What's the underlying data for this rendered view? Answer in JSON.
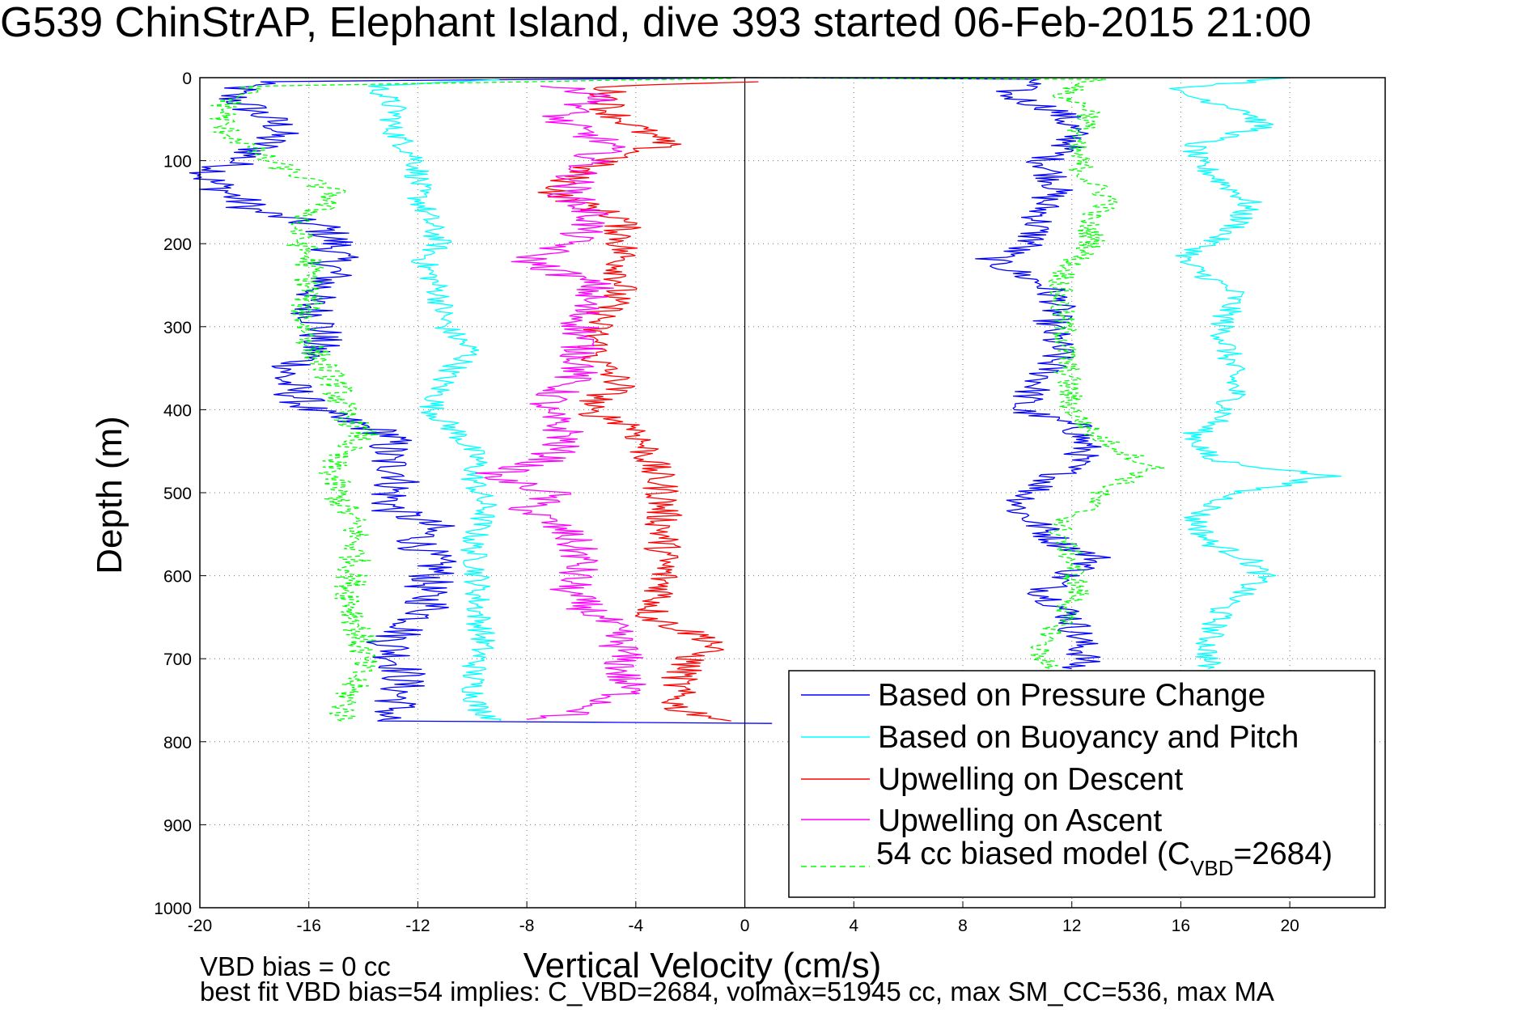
{
  "chart_data": {
    "type": "line",
    "title": "G539 ChinStrAP, Elephant Island, dive 393 started 06-Feb-2015 21:00",
    "xlabel": "Vertical Velocity (cm/s)",
    "ylabel": "Depth (m)",
    "xlim": [
      -20,
      23.5
    ],
    "ylim": [
      1000,
      0
    ],
    "xticks": [
      "-20",
      "-16",
      "-12",
      "-8",
      "-4",
      "0",
      "4",
      "8",
      "12",
      "16",
      "20"
    ],
    "yticks": [
      "0",
      "100",
      "200",
      "300",
      "400",
      "500",
      "600",
      "700",
      "800",
      "900",
      "1000"
    ],
    "grid": true,
    "legend_position": "bottom-right",
    "legend": {
      "entries": [
        {
          "label": "Based on Pressure Change",
          "color": "#0000ff",
          "style": "solid"
        },
        {
          "label": "Based on Buoyancy and Pitch",
          "color": "#00ffff",
          "style": "solid"
        },
        {
          "label": "Upwelling on Descent",
          "color": "#ff0000",
          "style": "solid"
        },
        {
          "label": "Upwelling on Ascent",
          "color": "#ff00ff",
          "style": "solid"
        }
      ],
      "model_entry": {
        "prefix": "54 cc biased model (C",
        "subscript": "VBD",
        "suffix": "=2684)",
        "color": "#00ff00",
        "style": "dashed"
      }
    },
    "footnotes": [
      "VBD bias = 0 cc",
      "best fit VBD bias=54 implies: C_VBD=2684, volmax=51945 cc, max SM_CC=536, max MA"
    ],
    "series": [
      {
        "name": "Based on Pressure Change",
        "color": "#0000ff",
        "style": "solid",
        "noise": 0.9,
        "points": [
          [
            -0.3,
            0
          ],
          [
            -18,
            5
          ],
          [
            -19,
            20
          ],
          [
            -17,
            60
          ],
          [
            -18,
            90
          ],
          [
            -19.8,
            120
          ],
          [
            -18,
            160
          ],
          [
            -15.5,
            180
          ],
          [
            -15,
            200
          ],
          [
            -15.2,
            240
          ],
          [
            -16,
            270
          ],
          [
            -15.5,
            300
          ],
          [
            -15.8,
            330
          ],
          [
            -17,
            360
          ],
          [
            -16.5,
            380
          ],
          [
            -16,
            400
          ],
          [
            -13,
            430
          ],
          [
            -13.2,
            460
          ],
          [
            -12.5,
            480
          ],
          [
            -13,
            500
          ],
          [
            -13,
            520
          ],
          [
            -11.5,
            540
          ],
          [
            -12,
            560
          ],
          [
            -11.3,
            590
          ],
          [
            -11.8,
            620
          ],
          [
            -11.5,
            640
          ],
          [
            -13,
            680
          ],
          [
            -12.5,
            720
          ],
          [
            -12.8,
            760
          ],
          [
            -13.3,
            775
          ],
          [
            1,
            778
          ]
        ]
      },
      {
        "name": "Based on Pressure Change",
        "color": "#0000ff",
        "style": "solid",
        "noise": 0.7,
        "points": [
          [
            0,
            0
          ],
          [
            10.8,
            2
          ],
          [
            9.5,
            20
          ],
          [
            11.5,
            40
          ],
          [
            12,
            60
          ],
          [
            12,
            80
          ],
          [
            11,
            100
          ],
          [
            11.5,
            130
          ],
          [
            11,
            150
          ],
          [
            10.8,
            170
          ],
          [
            10.5,
            200
          ],
          [
            9,
            220
          ],
          [
            11,
            250
          ],
          [
            11.5,
            270
          ],
          [
            11.2,
            300
          ],
          [
            11.5,
            330
          ],
          [
            11,
            360
          ],
          [
            10.5,
            380
          ],
          [
            10,
            400
          ],
          [
            12.2,
            420
          ],
          [
            12.5,
            450
          ],
          [
            11.5,
            480
          ],
          [
            10.5,
            500
          ],
          [
            10,
            520
          ],
          [
            10.8,
            540
          ],
          [
            11.5,
            560
          ],
          [
            13,
            580
          ],
          [
            11.8,
            600
          ],
          [
            11,
            620
          ],
          [
            12,
            650
          ],
          [
            12.3,
            680
          ],
          [
            12.5,
            700
          ],
          [
            12,
            712
          ]
        ]
      },
      {
        "name": "Based on Buoyancy and Pitch",
        "color": "#00ffff",
        "style": "solid",
        "noise": 0.5,
        "points": [
          [
            -9,
            2
          ],
          [
            -13.5,
            10
          ],
          [
            -12.8,
            40
          ],
          [
            -13,
            60
          ],
          [
            -12,
            100
          ],
          [
            -12,
            140
          ],
          [
            -11.5,
            180
          ],
          [
            -11.2,
            200
          ],
          [
            -11.8,
            220
          ],
          [
            -11.2,
            260
          ],
          [
            -11,
            300
          ],
          [
            -10,
            330
          ],
          [
            -11,
            360
          ],
          [
            -11.5,
            400
          ],
          [
            -10.5,
            430
          ],
          [
            -9.8,
            460
          ],
          [
            -10,
            480
          ],
          [
            -9.5,
            520
          ],
          [
            -10,
            560
          ],
          [
            -9.8,
            600
          ],
          [
            -9.8,
            640
          ],
          [
            -9.6,
            680
          ],
          [
            -10,
            720
          ],
          [
            -9.8,
            760
          ],
          [
            -9,
            775
          ]
        ]
      },
      {
        "name": "Based on Buoyancy and Pitch",
        "color": "#00ffff",
        "style": "solid",
        "noise": 0.5,
        "points": [
          [
            20,
            0
          ],
          [
            15.5,
            15
          ],
          [
            18.5,
            40
          ],
          [
            19,
            60
          ],
          [
            16.5,
            80
          ],
          [
            16.5,
            100
          ],
          [
            18.5,
            150
          ],
          [
            18,
            180
          ],
          [
            16,
            220
          ],
          [
            18,
            260
          ],
          [
            17.5,
            300
          ],
          [
            17.8,
            340
          ],
          [
            18,
            380
          ],
          [
            17.5,
            410
          ],
          [
            16.5,
            430
          ],
          [
            17,
            460
          ],
          [
            21.5,
            480
          ],
          [
            18,
            500
          ],
          [
            16.5,
            530
          ],
          [
            17,
            560
          ],
          [
            18.5,
            580
          ],
          [
            19,
            600
          ],
          [
            17.5,
            640
          ],
          [
            17,
            680
          ],
          [
            17,
            712
          ]
        ]
      },
      {
        "name": "Upwelling on Descent",
        "color": "#ff0000",
        "style": "solid",
        "noise": 0.7,
        "points": [
          [
            0.5,
            5
          ],
          [
            -5,
            10
          ],
          [
            -5,
            40
          ],
          [
            -4,
            60
          ],
          [
            -3,
            80
          ],
          [
            -6,
            110
          ],
          [
            -7,
            140
          ],
          [
            -4.5,
            170
          ],
          [
            -4.5,
            200
          ],
          [
            -4.5,
            250
          ],
          [
            -5.5,
            300
          ],
          [
            -5.5,
            340
          ],
          [
            -4.5,
            370
          ],
          [
            -6,
            400
          ],
          [
            -4,
            420
          ],
          [
            -3.5,
            460
          ],
          [
            -3,
            500
          ],
          [
            -3,
            540
          ],
          [
            -3,
            580
          ],
          [
            -3,
            620
          ],
          [
            -3.5,
            650
          ],
          [
            -1,
            680
          ],
          [
            -2,
            700
          ],
          [
            -2.5,
            730
          ],
          [
            -2.5,
            760
          ],
          [
            -0.5,
            775
          ]
        ]
      },
      {
        "name": "Upwelling on Ascent",
        "color": "#ff00ff",
        "style": "solid",
        "noise": 0.8,
        "points": [
          [
            -7.5,
            10
          ],
          [
            -5,
            20
          ],
          [
            -7,
            50
          ],
          [
            -5,
            80
          ],
          [
            -6,
            110
          ],
          [
            -6.5,
            140
          ],
          [
            -5.5,
            170
          ],
          [
            -6.5,
            200
          ],
          [
            -8,
            220
          ],
          [
            -5.5,
            250
          ],
          [
            -6,
            280
          ],
          [
            -6,
            310
          ],
          [
            -6,
            350
          ],
          [
            -7.5,
            400
          ],
          [
            -6.5,
            430
          ],
          [
            -7.2,
            460
          ],
          [
            -9.5,
            480
          ],
          [
            -7,
            500
          ],
          [
            -8,
            520
          ],
          [
            -6.5,
            550
          ],
          [
            -6,
            580
          ],
          [
            -6.5,
            620
          ],
          [
            -5,
            660
          ],
          [
            -4.5,
            690
          ],
          [
            -4.5,
            720
          ],
          [
            -4.3,
            740
          ],
          [
            -6,
            765
          ],
          [
            -8,
            773
          ]
        ]
      },
      {
        "name": "54 cc biased model (CVBD=2684)",
        "color": "#00ff00",
        "style": "dashed",
        "noise": 0.6,
        "points": [
          [
            -0.5,
            1
          ],
          [
            -18,
            10
          ],
          [
            -19,
            30
          ],
          [
            -19.2,
            60
          ],
          [
            -17.5,
            100
          ],
          [
            -15,
            140
          ],
          [
            -16.5,
            180
          ],
          [
            -16,
            220
          ],
          [
            -16,
            260
          ],
          [
            -16.2,
            290
          ],
          [
            -15.8,
            330
          ],
          [
            -15,
            370
          ],
          [
            -14.8,
            400
          ],
          [
            -14,
            430
          ],
          [
            -15.2,
            460
          ],
          [
            -15,
            500
          ],
          [
            -14.3,
            540
          ],
          [
            -14.3,
            580
          ],
          [
            -14.5,
            620
          ],
          [
            -14.2,
            660
          ],
          [
            -14,
            700
          ],
          [
            -14.5,
            740
          ],
          [
            -14.8,
            775
          ]
        ]
      },
      {
        "name": "54 cc biased model (CVBD=2684)",
        "color": "#00ff00",
        "style": "dashed",
        "noise": 0.5,
        "points": [
          [
            0,
            0
          ],
          [
            13,
            2
          ],
          [
            11.5,
            20
          ],
          [
            12.8,
            40
          ],
          [
            12,
            80
          ],
          [
            12.5,
            120
          ],
          [
            13.5,
            150
          ],
          [
            12.5,
            170
          ],
          [
            12.8,
            200
          ],
          [
            11.8,
            230
          ],
          [
            11.5,
            260
          ],
          [
            11.7,
            300
          ],
          [
            11.8,
            340
          ],
          [
            11.9,
            380
          ],
          [
            12,
            400
          ],
          [
            12.8,
            430
          ],
          [
            15,
            470
          ],
          [
            13,
            500
          ],
          [
            12.5,
            520
          ],
          [
            11.5,
            540
          ],
          [
            12,
            580
          ],
          [
            12.2,
            620
          ],
          [
            11.5,
            660
          ],
          [
            10.8,
            690
          ],
          [
            11.2,
            712
          ]
        ]
      }
    ]
  }
}
